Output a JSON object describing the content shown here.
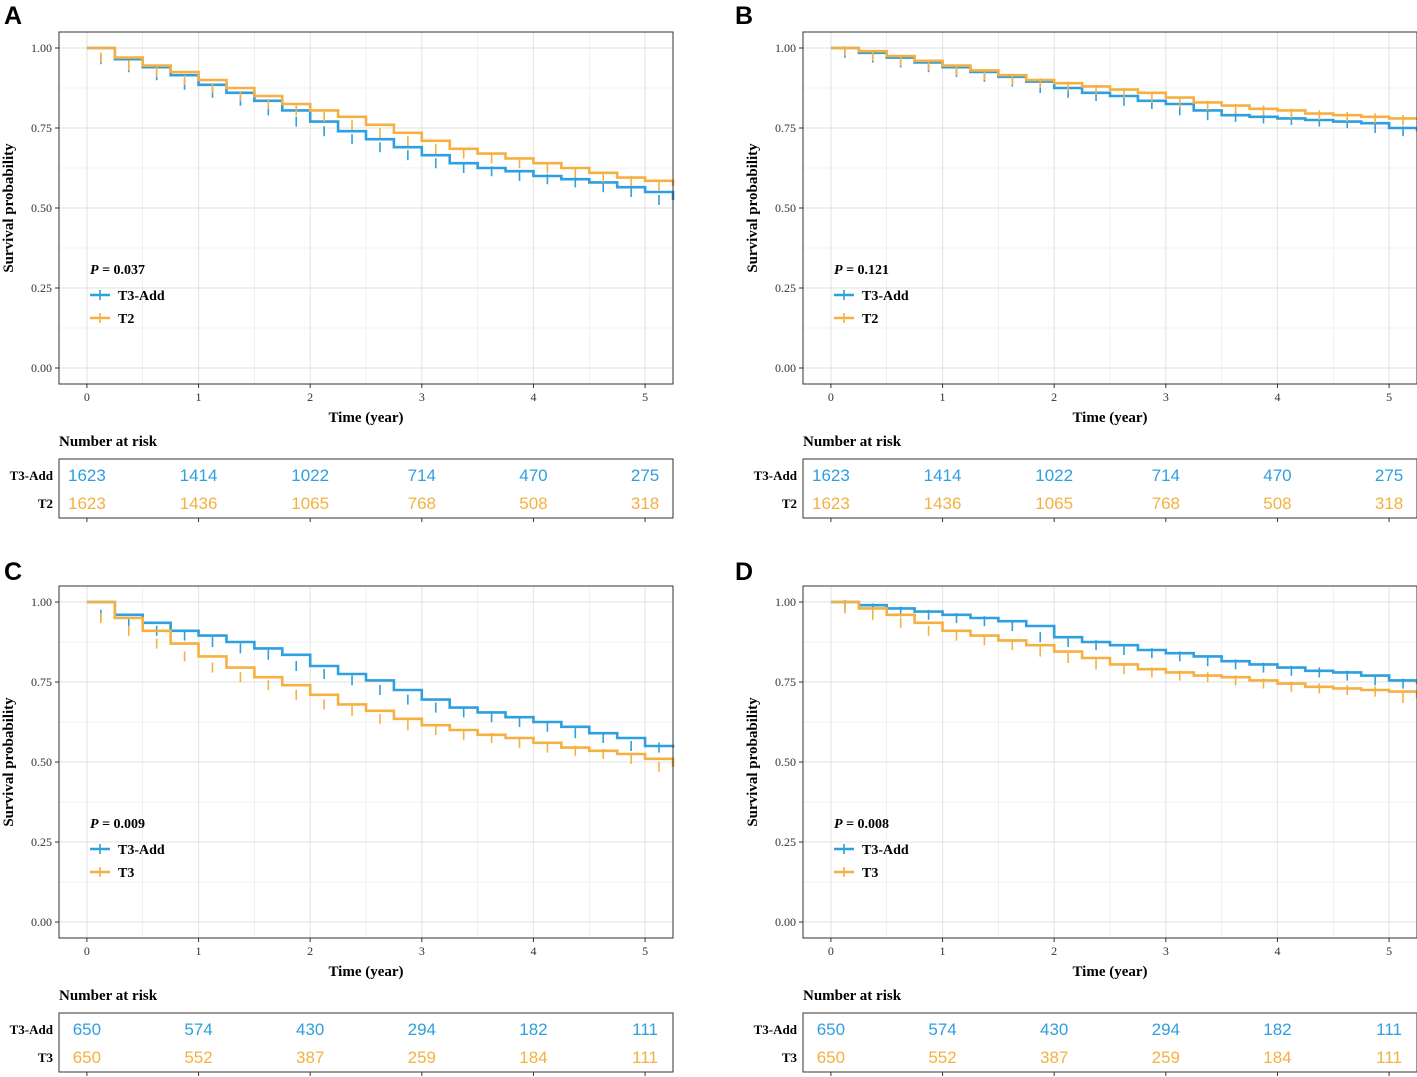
{
  "colors": {
    "series1": "#2E9FDF",
    "series2": "#F5B041",
    "grid": "#E6E6E6",
    "frame": "#333333"
  },
  "chart_data": [
    {
      "panel": "A",
      "type": "line",
      "xlabel": "Time (year)",
      "ylabel": "Survival probability",
      "xlim": [
        -0.25,
        5.25
      ],
      "ylim": [
        -0.05,
        1.05
      ],
      "xticks": [
        "0",
        "1",
        "2",
        "3",
        "4",
        "5"
      ],
      "yticks": [
        "0.00",
        "0.25",
        "0.50",
        "0.75",
        "1.00"
      ],
      "pvalue_prefix": "P",
      "pvalue_text": " = 0.037",
      "legend_position": "bottom-left",
      "risk_title": "Number at risk",
      "series": [
        {
          "name": "T3-Add",
          "x": [
            0,
            0.25,
            0.5,
            0.75,
            1,
            1.25,
            1.5,
            1.75,
            2,
            2.25,
            2.5,
            2.75,
            3,
            3.25,
            3.5,
            3.75,
            4,
            4.25,
            4.5,
            4.75,
            5,
            5.25
          ],
          "y": [
            1.0,
            0.965,
            0.94,
            0.915,
            0.885,
            0.86,
            0.835,
            0.805,
            0.77,
            0.74,
            0.715,
            0.69,
            0.665,
            0.64,
            0.625,
            0.615,
            0.6,
            0.59,
            0.58,
            0.565,
            0.55,
            0.525
          ],
          "risk": [
            "1623",
            "1414",
            "1022",
            "714",
            "470",
            "275"
          ]
        },
        {
          "name": "T2",
          "x": [
            0,
            0.25,
            0.5,
            0.75,
            1,
            1.25,
            1.5,
            1.75,
            2,
            2.25,
            2.5,
            2.75,
            3,
            3.25,
            3.5,
            3.75,
            4,
            4.25,
            4.5,
            4.75,
            5,
            5.25
          ],
          "y": [
            1.0,
            0.97,
            0.945,
            0.925,
            0.9,
            0.875,
            0.85,
            0.825,
            0.805,
            0.785,
            0.76,
            0.735,
            0.71,
            0.685,
            0.67,
            0.655,
            0.64,
            0.625,
            0.61,
            0.595,
            0.585,
            0.57
          ],
          "risk": [
            "1623",
            "1436",
            "1065",
            "768",
            "508",
            "318"
          ]
        }
      ]
    },
    {
      "panel": "B",
      "type": "line",
      "xlabel": "Time (year)",
      "ylabel": "Survival probability",
      "xlim": [
        -0.25,
        5.25
      ],
      "ylim": [
        -0.05,
        1.05
      ],
      "xticks": [
        "0",
        "1",
        "2",
        "3",
        "4",
        "5"
      ],
      "yticks": [
        "0.00",
        "0.25",
        "0.50",
        "0.75",
        "1.00"
      ],
      "pvalue_prefix": "P",
      "pvalue_text": " = 0.121",
      "legend_position": "bottom-left",
      "risk_title": "Number at risk",
      "series": [
        {
          "name": "T3-Add",
          "x": [
            0,
            0.25,
            0.5,
            0.75,
            1,
            1.25,
            1.5,
            1.75,
            2,
            2.25,
            2.5,
            2.75,
            3,
            3.25,
            3.5,
            3.75,
            4,
            4.25,
            4.5,
            4.75,
            5,
            5.25
          ],
          "y": [
            1.0,
            0.985,
            0.97,
            0.955,
            0.94,
            0.925,
            0.91,
            0.895,
            0.875,
            0.86,
            0.85,
            0.835,
            0.825,
            0.805,
            0.79,
            0.785,
            0.78,
            0.775,
            0.77,
            0.765,
            0.75,
            0.74
          ],
          "risk": [
            "1623",
            "1414",
            "1022",
            "714",
            "470",
            "275"
          ]
        },
        {
          "name": "T2",
          "x": [
            0,
            0.25,
            0.5,
            0.75,
            1,
            1.25,
            1.5,
            1.75,
            2,
            2.25,
            2.5,
            2.75,
            3,
            3.25,
            3.5,
            3.75,
            4,
            4.25,
            4.5,
            4.75,
            5,
            5.25
          ],
          "y": [
            1.0,
            0.99,
            0.975,
            0.96,
            0.945,
            0.93,
            0.915,
            0.9,
            0.89,
            0.88,
            0.87,
            0.86,
            0.845,
            0.83,
            0.82,
            0.81,
            0.805,
            0.795,
            0.79,
            0.785,
            0.78,
            0.775
          ],
          "risk": [
            "1623",
            "1436",
            "1065",
            "768",
            "508",
            "318"
          ]
        }
      ]
    },
    {
      "panel": "C",
      "type": "line",
      "xlabel": "Time (year)",
      "ylabel": "Survival probability",
      "xlim": [
        -0.25,
        5.25
      ],
      "ylim": [
        -0.05,
        1.05
      ],
      "xticks": [
        "0",
        "1",
        "2",
        "3",
        "4",
        "5"
      ],
      "yticks": [
        "0.00",
        "0.25",
        "0.50",
        "0.75",
        "1.00"
      ],
      "pvalue_prefix": "P",
      "pvalue_text": " = 0.009",
      "legend_position": "bottom-left",
      "risk_title": "Number at risk",
      "series": [
        {
          "name": "T3-Add",
          "x": [
            0,
            0.25,
            0.5,
            0.75,
            1,
            1.25,
            1.5,
            1.75,
            2,
            2.25,
            2.5,
            2.75,
            3,
            3.25,
            3.5,
            3.75,
            4,
            4.25,
            4.5,
            4.75,
            5,
            5.25
          ],
          "y": [
            1.0,
            0.96,
            0.935,
            0.91,
            0.895,
            0.875,
            0.855,
            0.835,
            0.8,
            0.775,
            0.755,
            0.725,
            0.695,
            0.67,
            0.655,
            0.64,
            0.625,
            0.61,
            0.59,
            0.575,
            0.55,
            0.545
          ],
          "risk": [
            "650",
            "574",
            "430",
            "294",
            "182",
            "111"
          ]
        },
        {
          "name": "T3",
          "x": [
            0,
            0.25,
            0.5,
            0.75,
            1,
            1.25,
            1.5,
            1.75,
            2,
            2.25,
            2.5,
            2.75,
            3,
            3.25,
            3.5,
            3.75,
            4,
            4.25,
            4.5,
            4.75,
            5,
            5.25
          ],
          "y": [
            1.0,
            0.95,
            0.91,
            0.87,
            0.83,
            0.795,
            0.765,
            0.74,
            0.71,
            0.68,
            0.66,
            0.635,
            0.615,
            0.6,
            0.585,
            0.575,
            0.56,
            0.545,
            0.535,
            0.525,
            0.51,
            0.485
          ],
          "risk": [
            "650",
            "552",
            "387",
            "259",
            "184",
            "111"
          ]
        }
      ]
    },
    {
      "panel": "D",
      "type": "line",
      "xlabel": "Time (year)",
      "ylabel": "Survival probability",
      "xlim": [
        -0.25,
        5.25
      ],
      "ylim": [
        -0.05,
        1.05
      ],
      "xticks": [
        "0",
        "1",
        "2",
        "3",
        "4",
        "5"
      ],
      "yticks": [
        "0.00",
        "0.25",
        "0.50",
        "0.75",
        "1.00"
      ],
      "pvalue_prefix": "P",
      "pvalue_text": " = 0.008",
      "legend_position": "bottom-left",
      "risk_title": "Number at risk",
      "series": [
        {
          "name": "T3-Add",
          "x": [
            0,
            0.25,
            0.5,
            0.75,
            1,
            1.25,
            1.5,
            1.75,
            2,
            2.25,
            2.5,
            2.75,
            3,
            3.25,
            3.5,
            3.75,
            4,
            4.25,
            4.5,
            4.75,
            5,
            5.25
          ],
          "y": [
            1.0,
            0.99,
            0.98,
            0.97,
            0.96,
            0.95,
            0.94,
            0.925,
            0.89,
            0.875,
            0.865,
            0.85,
            0.84,
            0.83,
            0.815,
            0.805,
            0.795,
            0.785,
            0.78,
            0.77,
            0.755,
            0.745
          ],
          "risk": [
            "650",
            "574",
            "430",
            "294",
            "182",
            "111"
          ]
        },
        {
          "name": "T3",
          "x": [
            0,
            0.25,
            0.5,
            0.75,
            1,
            1.25,
            1.5,
            1.75,
            2,
            2.25,
            2.5,
            2.75,
            3,
            3.25,
            3.5,
            3.75,
            4,
            4.25,
            4.5,
            4.75,
            5,
            5.25
          ],
          "y": [
            1.0,
            0.98,
            0.96,
            0.935,
            0.91,
            0.895,
            0.88,
            0.865,
            0.845,
            0.825,
            0.805,
            0.79,
            0.78,
            0.77,
            0.765,
            0.755,
            0.745,
            0.735,
            0.73,
            0.725,
            0.72,
            0.7
          ],
          "risk": [
            "650",
            "552",
            "387",
            "259",
            "184",
            "111"
          ]
        }
      ]
    }
  ]
}
